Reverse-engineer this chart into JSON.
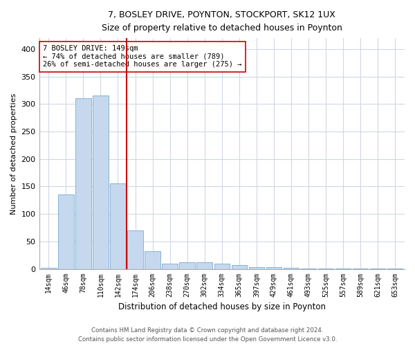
{
  "title1": "7, BOSLEY DRIVE, POYNTON, STOCKPORT, SK12 1UX",
  "title2": "Size of property relative to detached houses in Poynton",
  "xlabel": "Distribution of detached houses by size in Poynton",
  "ylabel": "Number of detached properties",
  "bar_labels": [
    "14sqm",
    "46sqm",
    "78sqm",
    "110sqm",
    "142sqm",
    "174sqm",
    "206sqm",
    "238sqm",
    "270sqm",
    "302sqm",
    "334sqm",
    "365sqm",
    "397sqm",
    "429sqm",
    "461sqm",
    "493sqm",
    "525sqm",
    "557sqm",
    "589sqm",
    "621sqm",
    "653sqm"
  ],
  "bar_values": [
    2,
    135,
    310,
    315,
    155,
    70,
    32,
    10,
    12,
    12,
    9,
    7,
    3,
    3,
    2,
    1,
    1,
    1,
    1,
    1,
    1
  ],
  "bar_color": "#c5d8ee",
  "bar_edge_color": "#7aaad0",
  "vline_color": "#cc0000",
  "annotation_text": "7 BOSLEY DRIVE: 149sqm\n← 74% of detached houses are smaller (789)\n26% of semi-detached houses are larger (275) →",
  "annotation_box_color": "#ffffff",
  "annotation_box_edge": "#cc0000",
  "ylim": [
    0,
    420
  ],
  "yticks": [
    0,
    50,
    100,
    150,
    200,
    250,
    300,
    350,
    400
  ],
  "footer1": "Contains HM Land Registry data © Crown copyright and database right 2024.",
  "footer2": "Contains public sector information licensed under the Open Government Licence v3.0.",
  "bg_color": "#ffffff",
  "grid_color": "#d0d8e4"
}
